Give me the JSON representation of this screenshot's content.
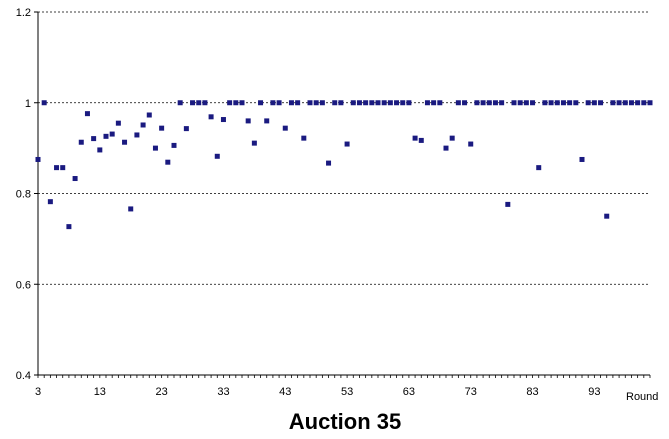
{
  "chart_data": {
    "type": "scatter",
    "title": "Auction 35",
    "xlabel": "Round",
    "ylabel": "",
    "xlim": [
      3,
      102
    ],
    "ylim": [
      0.4,
      1.2
    ],
    "x_ticks": [
      "3",
      "13",
      "23",
      "33",
      "43",
      "53",
      "63",
      "73",
      "83",
      "93"
    ],
    "y_ticks": [
      "0.4",
      "0.6",
      "0.8",
      "1",
      "1.2"
    ],
    "grid": "horizontal-dashed",
    "marker_color": "#1a1a80",
    "series": [
      {
        "points": [
          [
            3,
            0.875
          ],
          [
            4,
            1.0
          ],
          [
            5,
            0.782
          ],
          [
            6,
            0.857
          ],
          [
            7,
            0.857
          ],
          [
            8,
            0.727
          ],
          [
            9,
            0.833
          ],
          [
            10,
            0.913
          ],
          [
            11,
            0.976
          ],
          [
            12,
            0.921
          ],
          [
            13,
            0.896
          ],
          [
            14,
            0.926
          ],
          [
            15,
            0.931
          ],
          [
            16,
            0.955
          ],
          [
            17,
            0.913
          ],
          [
            18,
            0.766
          ],
          [
            19,
            0.929
          ],
          [
            20,
            0.951
          ],
          [
            21,
            0.973
          ],
          [
            22,
            0.9
          ],
          [
            23,
            0.944
          ],
          [
            24,
            0.869
          ],
          [
            25,
            0.906
          ],
          [
            26,
            1.0
          ],
          [
            27,
            0.943
          ],
          [
            28,
            1.0
          ],
          [
            29,
            1.0
          ],
          [
            30,
            1.0
          ],
          [
            31,
            0.969
          ],
          [
            32,
            0.882
          ],
          [
            33,
            0.963
          ],
          [
            34,
            1.0
          ],
          [
            35,
            1.0
          ],
          [
            36,
            1.0
          ],
          [
            37,
            0.96
          ],
          [
            38,
            0.911
          ],
          [
            39,
            1.0
          ],
          [
            40,
            0.96
          ],
          [
            41,
            1.0
          ],
          [
            42,
            1.0
          ],
          [
            43,
            0.944
          ],
          [
            44,
            1.0
          ],
          [
            45,
            1.0
          ],
          [
            46,
            0.922
          ],
          [
            47,
            1.0
          ],
          [
            48,
            1.0
          ],
          [
            49,
            1.0
          ],
          [
            50,
            0.867
          ],
          [
            51,
            1.0
          ],
          [
            52,
            1.0
          ],
          [
            53,
            0.909
          ],
          [
            54,
            1.0
          ],
          [
            55,
            1.0
          ],
          [
            56,
            1.0
          ],
          [
            57,
            1.0
          ],
          [
            58,
            1.0
          ],
          [
            59,
            1.0
          ],
          [
            60,
            1.0
          ],
          [
            61,
            1.0
          ],
          [
            62,
            1.0
          ],
          [
            63,
            1.0
          ],
          [
            64,
            0.922
          ],
          [
            65,
            0.917
          ],
          [
            66,
            1.0
          ],
          [
            67,
            1.0
          ],
          [
            68,
            1.0
          ],
          [
            69,
            0.9
          ],
          [
            70,
            0.922
          ],
          [
            71,
            1.0
          ],
          [
            72,
            1.0
          ],
          [
            73,
            0.909
          ],
          [
            74,
            1.0
          ],
          [
            75,
            1.0
          ],
          [
            76,
            1.0
          ],
          [
            77,
            1.0
          ],
          [
            78,
            1.0
          ],
          [
            79,
            0.776
          ],
          [
            80,
            1.0
          ],
          [
            81,
            1.0
          ],
          [
            82,
            1.0
          ],
          [
            83,
            1.0
          ],
          [
            84,
            0.857
          ],
          [
            85,
            1.0
          ],
          [
            86,
            1.0
          ],
          [
            87,
            1.0
          ],
          [
            88,
            1.0
          ],
          [
            89,
            1.0
          ],
          [
            90,
            1.0
          ],
          [
            91,
            0.875
          ],
          [
            92,
            1.0
          ],
          [
            93,
            1.0
          ],
          [
            94,
            1.0
          ],
          [
            95,
            0.75
          ],
          [
            96,
            1.0
          ],
          [
            97,
            1.0
          ],
          [
            98,
            1.0
          ],
          [
            99,
            1.0
          ],
          [
            100,
            1.0
          ],
          [
            101,
            1.0
          ],
          [
            102,
            1.0
          ]
        ]
      }
    ]
  }
}
